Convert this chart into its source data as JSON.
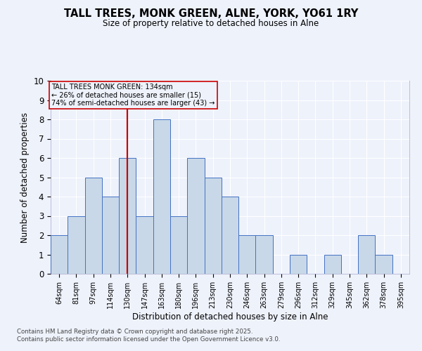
{
  "title": "TALL TREES, MONK GREEN, ALNE, YORK, YO61 1RY",
  "subtitle": "Size of property relative to detached houses in Alne",
  "xlabel": "Distribution of detached houses by size in Alne",
  "ylabel": "Number of detached properties",
  "bins": [
    "64sqm",
    "81sqm",
    "97sqm",
    "114sqm",
    "130sqm",
    "147sqm",
    "163sqm",
    "180sqm",
    "196sqm",
    "213sqm",
    "230sqm",
    "246sqm",
    "263sqm",
    "279sqm",
    "296sqm",
    "312sqm",
    "329sqm",
    "345sqm",
    "362sqm",
    "378sqm",
    "395sqm"
  ],
  "counts": [
    2,
    3,
    5,
    4,
    6,
    3,
    8,
    3,
    6,
    5,
    4,
    2,
    2,
    0,
    1,
    0,
    1,
    0,
    2,
    1,
    0
  ],
  "property_bin_index": 4,
  "property_size": "134sqm",
  "pct_smaller": 26,
  "n_smaller": 15,
  "pct_larger_semi": 74,
  "n_larger_semi": 43,
  "bar_color": "#c8d8e8",
  "bar_edge_color": "#4472c4",
  "vline_color": "#cc0000",
  "background_color": "#eef2fb",
  "grid_color": "#ffffff",
  "footer_text": "Contains HM Land Registry data © Crown copyright and database right 2025.\nContains public sector information licensed under the Open Government Licence v3.0.",
  "ylim": [
    0,
    10
  ],
  "title_fontsize": 10.5,
  "subtitle_fontsize": 8.5
}
